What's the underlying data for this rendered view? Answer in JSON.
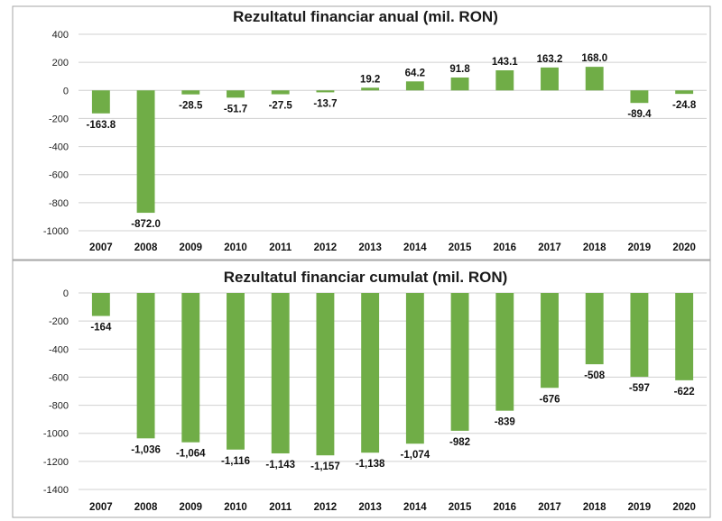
{
  "chart_data": [
    {
      "type": "bar",
      "title": "Rezultatul financiar anual (mil. RON)",
      "categories": [
        "2007",
        "2008",
        "2009",
        "2010",
        "2011",
        "2012",
        "2013",
        "2014",
        "2015",
        "2016",
        "2017",
        "2018",
        "2019",
        "2020"
      ],
      "values": [
        -163.8,
        -872.0,
        -28.5,
        -51.7,
        -27.5,
        -13.7,
        19.2,
        64.2,
        91.8,
        143.1,
        163.2,
        168.0,
        -89.4,
        -24.8
      ],
      "value_labels": [
        "-163.8",
        "-872.0",
        "-28.5",
        "-51.7",
        "-27.5",
        "-13.7",
        "19.2",
        "64.2",
        "91.8",
        "143.1",
        "163.2",
        "168.0",
        "-89.4",
        "-24.8"
      ],
      "ylim": [
        -1000,
        400
      ],
      "yticks": [
        400,
        200,
        0,
        -200,
        -400,
        -600,
        -800,
        -1000
      ],
      "ytick_labels": [
        "400",
        "200",
        "0",
        "-200",
        "-400",
        "-600",
        "-800",
        "-1000"
      ],
      "grid": true,
      "bar_color": "#70ad47"
    },
    {
      "type": "bar",
      "title": "Rezultatul financiar cumulat (mil. RON)",
      "categories": [
        "2007",
        "2008",
        "2009",
        "2010",
        "2011",
        "2012",
        "2013",
        "2014",
        "2015",
        "2016",
        "2017",
        "2018",
        "2019",
        "2020"
      ],
      "values": [
        -164,
        -1036,
        -1064,
        -1116,
        -1143,
        -1157,
        -1138,
        -1074,
        -982,
        -839,
        -676,
        -508,
        -597,
        -622
      ],
      "value_labels": [
        "-164",
        "-1,036",
        "-1,064",
        "-1,116",
        "-1,143",
        "-1,157",
        "-1,138",
        "-1,074",
        "-982",
        "-839",
        "-676",
        "-508",
        "-597",
        "-622"
      ],
      "ylim": [
        -1400,
        0
      ],
      "yticks": [
        0,
        -200,
        -400,
        -600,
        -800,
        -1000,
        -1200,
        -1400
      ],
      "ytick_labels": [
        "0",
        "-200",
        "-400",
        "-600",
        "-800",
        "-1000",
        "-1200",
        "-1400"
      ],
      "grid": true,
      "bar_color": "#70ad47"
    }
  ]
}
